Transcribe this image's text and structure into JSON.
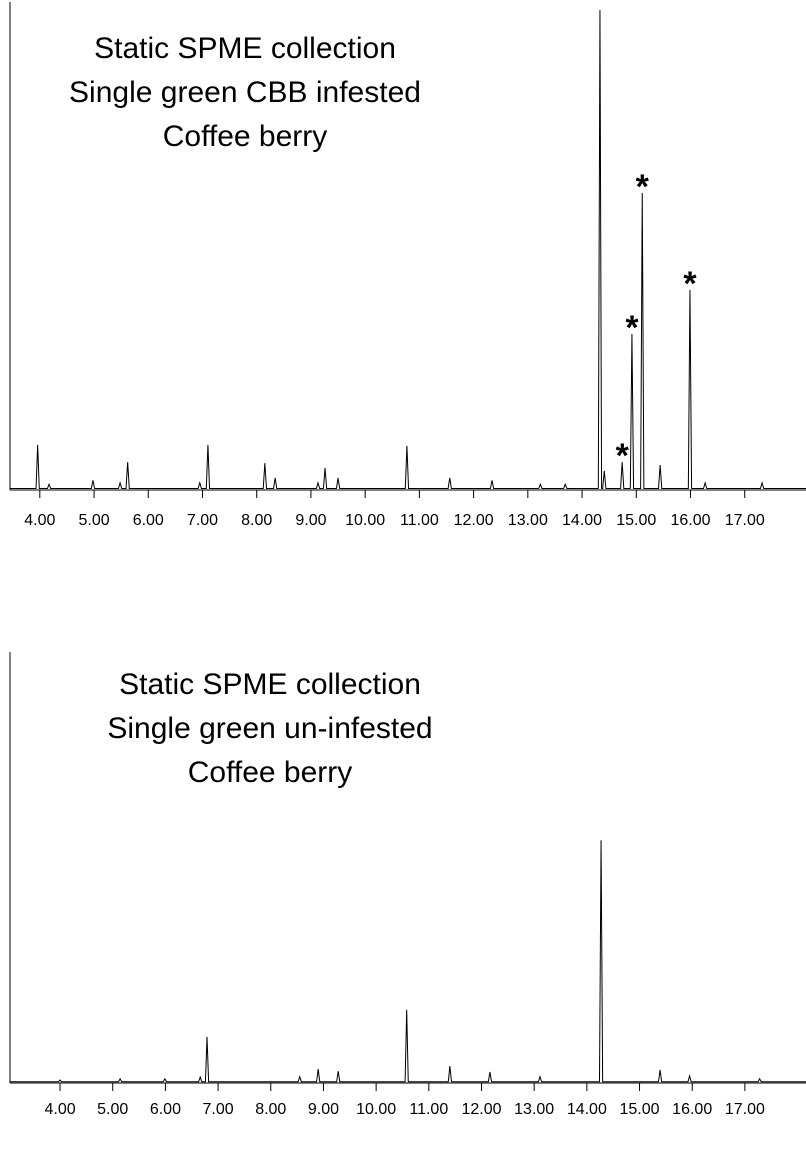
{
  "chart_data": [
    {
      "type": "line",
      "title": [
        "Static SPME collection",
        "Single green CBB infested",
        "Coffee berry"
      ],
      "color": "#000000",
      "x": [
        3.45,
        3.93,
        3.96,
        3.99,
        4.14,
        4.17,
        4.2,
        4.95,
        4.98,
        5.01,
        5.45,
        5.48,
        5.51,
        5.59,
        5.62,
        5.65,
        6.92,
        6.95,
        6.98,
        7.07,
        7.1,
        7.13,
        8.12,
        8.15,
        8.18,
        8.31,
        8.34,
        8.37,
        9.1,
        9.13,
        9.16,
        9.23,
        9.26,
        9.29,
        9.47,
        9.5,
        9.53,
        10.74,
        10.77,
        10.8,
        11.53,
        11.56,
        11.59,
        12.31,
        12.34,
        12.37,
        13.2,
        13.23,
        13.26,
        13.66,
        13.69,
        13.72,
        14.3,
        14.33,
        14.36,
        14.38,
        14.41,
        14.44,
        14.71,
        14.74,
        14.77,
        14.89,
        14.92,
        14.95,
        15.08,
        15.11,
        15.14,
        15.41,
        15.44,
        15.47,
        15.96,
        15.99,
        16.02,
        16.24,
        16.27,
        16.3,
        17.29,
        17.32,
        17.35,
        18.13
      ],
      "values": [
        0.3,
        0.3,
        9.4,
        0.3,
        0.3,
        1.2,
        0.3,
        0.3,
        2.0,
        0.3,
        0.3,
        1.5,
        0.3,
        0.3,
        5.8,
        0.3,
        0.3,
        1.5,
        0.3,
        0.3,
        9.4,
        0.3,
        0.3,
        5.6,
        0.3,
        0.3,
        2.5,
        0.3,
        0.3,
        1.5,
        0.3,
        0.3,
        4.6,
        0.3,
        0.3,
        2.5,
        0.3,
        0.3,
        9.2,
        0.3,
        0.3,
        2.5,
        0.3,
        0.3,
        2.0,
        0.3,
        0.3,
        1.2,
        0.3,
        0.3,
        1.2,
        0.3,
        0.3,
        100,
        0.3,
        0.3,
        4.0,
        0.3,
        0.3,
        5.8,
        0.3,
        0.3,
        32.5,
        0.3,
        0.3,
        61.9,
        0.3,
        0.3,
        5.2,
        0.3,
        0.3,
        41.7,
        0.3,
        0.3,
        1.5,
        0.3,
        0.3,
        1.5,
        0.3,
        0.3
      ],
      "xlim": [
        3.45,
        18.13
      ],
      "ylim": [
        0,
        100
      ],
      "xticks": [
        {
          "value": 4,
          "label": "4.00"
        },
        {
          "value": 5,
          "label": "5.00"
        },
        {
          "value": 6,
          "label": "6.00"
        },
        {
          "value": 7,
          "label": "7.00"
        },
        {
          "value": 8,
          "label": "8.00"
        },
        {
          "value": 9,
          "label": "9.00"
        },
        {
          "value": 10,
          "label": "10.00"
        },
        {
          "value": 11,
          "label": "11.00"
        },
        {
          "value": 12,
          "label": "12.00"
        },
        {
          "value": 13,
          "label": "13.00"
        },
        {
          "value": 14,
          "label": "14.00"
        },
        {
          "value": 15,
          "label": "15.00"
        },
        {
          "value": 16,
          "label": "16.00"
        },
        {
          "value": 17,
          "label": "17.00"
        }
      ],
      "annotations": [
        {
          "text": "*",
          "x": 14.74
        },
        {
          "text": "*",
          "x": 14.92
        },
        {
          "text": "*",
          "x": 15.11
        },
        {
          "text": "*",
          "x": 15.99
        }
      ]
    },
    {
      "type": "line",
      "title": [
        "Static SPME collection",
        "Single green un-infested",
        "Coffee berry"
      ],
      "color": "#000000",
      "x": [
        3.05,
        3.97,
        4.0,
        4.03,
        5.11,
        5.14,
        5.17,
        5.96,
        5.99,
        6.02,
        6.63,
        6.66,
        6.69,
        6.76,
        6.79,
        6.82,
        8.52,
        8.55,
        8.58,
        8.87,
        8.9,
        8.93,
        9.25,
        9.28,
        9.31,
        10.55,
        10.58,
        10.61,
        11.37,
        11.4,
        11.43,
        12.13,
        12.16,
        12.19,
        13.08,
        13.11,
        13.14,
        14.24,
        14.27,
        14.3,
        15.36,
        15.39,
        15.42,
        15.92,
        15.95,
        15.98,
        17.25,
        17.28,
        17.31,
        18.16
      ],
      "values": [
        0.3,
        0.3,
        0.7,
        0.3,
        0.3,
        1.0,
        0.3,
        0.3,
        1.0,
        0.3,
        0.3,
        1.4,
        0.3,
        0.3,
        10.9,
        0.3,
        0.3,
        1.5,
        0.3,
        0.3,
        3.3,
        0.3,
        0.3,
        2.8,
        0.3,
        0.3,
        17.3,
        0.3,
        0.3,
        4.0,
        0.3,
        0.3,
        2.6,
        0.3,
        0.3,
        1.5,
        0.3,
        0.3,
        57.4,
        0.3,
        0.3,
        3.1,
        0.3,
        0.3,
        1.7,
        0.3,
        0.3,
        1.0,
        0.3,
        0.3
      ],
      "xlim": [
        3.05,
        18.16
      ],
      "ylim": [
        0,
        100
      ],
      "xticks": [
        {
          "value": 4,
          "label": "4.00"
        },
        {
          "value": 5,
          "label": "5.00"
        },
        {
          "value": 6,
          "label": "6.00"
        },
        {
          "value": 7,
          "label": "7.00"
        },
        {
          "value": 8,
          "label": "8.00"
        },
        {
          "value": 9,
          "label": "9.00"
        },
        {
          "value": 10,
          "label": "10.00"
        },
        {
          "value": 11,
          "label": "11.00"
        },
        {
          "value": 12,
          "label": "12.00"
        },
        {
          "value": 13,
          "label": "13.00"
        },
        {
          "value": 14,
          "label": "14.00"
        },
        {
          "value": 15,
          "label": "15.00"
        },
        {
          "value": 16,
          "label": "16.00"
        },
        {
          "value": 17,
          "label": "17.00"
        }
      ]
    }
  ]
}
